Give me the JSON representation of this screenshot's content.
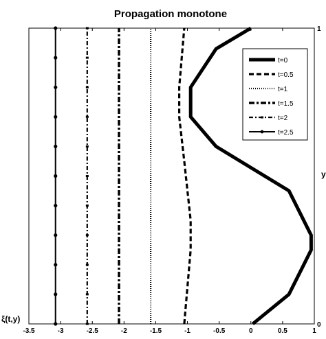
{
  "chart_data": {
    "type": "line",
    "title": "Propagation monotone",
    "xlabel": "ξ(t,y)",
    "ylabel": "y",
    "xlim": [
      -3.5,
      1
    ],
    "ylim": [
      0,
      1
    ],
    "x_ticks": [
      -3.5,
      -3,
      -2.5,
      -2,
      -1.5,
      -1,
      -0.5,
      0,
      0.5,
      1
    ],
    "x_tick_labels": [
      "-3.5",
      "-3",
      "-2.5",
      "-2",
      "-1.5",
      "-1",
      "-0.5",
      "0",
      "0.5",
      "1"
    ],
    "y_ticks": [
      0,
      1
    ],
    "y_tick_labels": [
      "0",
      "1"
    ],
    "y_axis_location": "right",
    "grid": false,
    "legend": {
      "position": "top-right"
    },
    "series": [
      {
        "name": "t=0",
        "style": "solid-thick",
        "points": [
          [
            0.03,
            0
          ],
          [
            0.6,
            0.1
          ],
          [
            0.95,
            0.25
          ],
          [
            0.95,
            0.3
          ],
          [
            0.6,
            0.45
          ],
          [
            -0.55,
            0.6
          ],
          [
            -0.95,
            0.7
          ],
          [
            -0.95,
            0.8
          ],
          [
            -0.55,
            0.93
          ],
          [
            0,
            1
          ]
        ]
      },
      {
        "name": "t=0.5",
        "style": "dashed",
        "points": [
          [
            -1.05,
            0
          ],
          [
            -0.95,
            0.25
          ],
          [
            -0.95,
            0.35
          ],
          [
            -1.05,
            0.55
          ],
          [
            -1.13,
            0.7
          ],
          [
            -1.13,
            0.8
          ],
          [
            -1.05,
            1
          ]
        ]
      },
      {
        "name": "t=1",
        "style": "dotted",
        "points": [
          [
            -1.58,
            0
          ],
          [
            -1.58,
            1
          ]
        ]
      },
      {
        "name": "t=1.5",
        "style": "dash-dot-heavy",
        "points": [
          [
            -2.08,
            0
          ],
          [
            -2.08,
            1
          ]
        ]
      },
      {
        "name": "t=2",
        "style": "dash-dot-markers",
        "points": [
          [
            -2.58,
            0
          ],
          [
            -2.58,
            1
          ]
        ]
      },
      {
        "name": "t=2.5",
        "style": "solid-markers",
        "points": [
          [
            -3.08,
            0
          ],
          [
            -3.08,
            1
          ]
        ]
      }
    ]
  }
}
